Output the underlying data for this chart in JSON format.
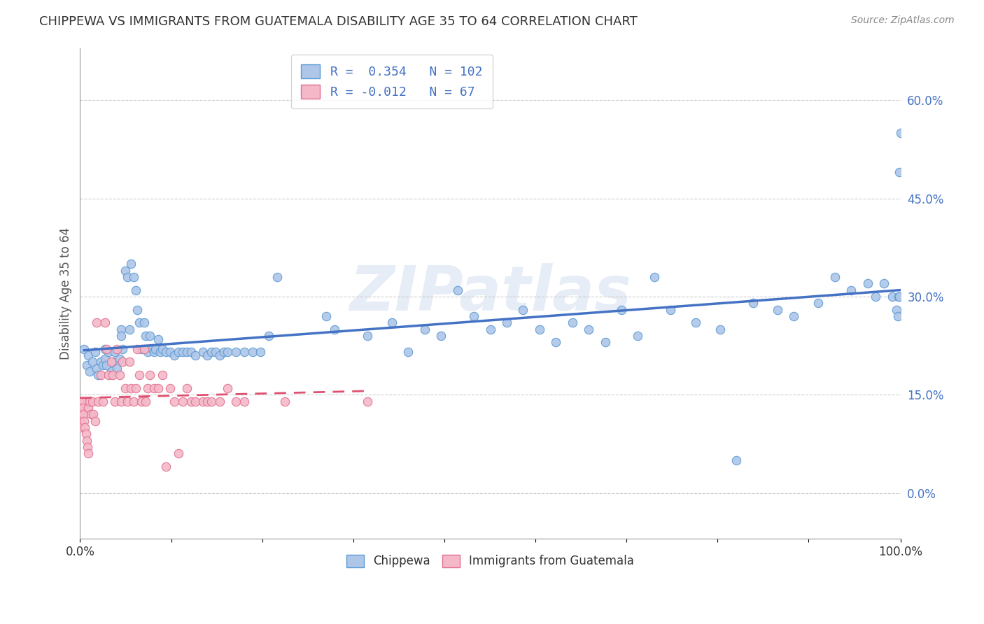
{
  "title": "CHIPPEWA VS IMMIGRANTS FROM GUATEMALA DISABILITY AGE 35 TO 64 CORRELATION CHART",
  "source": "Source: ZipAtlas.com",
  "ylabel": "Disability Age 35 to 64",
  "xlim": [
    0.0,
    1.0
  ],
  "ylim": [
    -0.07,
    0.68
  ],
  "yticks": [
    0.0,
    0.15,
    0.3,
    0.45,
    0.6
  ],
  "ytick_labels": [
    "0.0%",
    "15.0%",
    "30.0%",
    "45.0%",
    "60.0%"
  ],
  "xtick_labels": [
    "0.0%",
    "",
    "",
    "",
    "",
    "",
    "",
    "",
    "",
    "100.0%"
  ],
  "xticks": [
    0.0,
    0.111,
    0.222,
    0.333,
    0.444,
    0.555,
    0.666,
    0.777,
    0.888,
    1.0
  ],
  "chippewa_R": 0.354,
  "chippewa_N": 102,
  "guatemala_R": -0.012,
  "guatemala_N": 67,
  "chippewa_color": "#aec6e8",
  "guatemala_color": "#f4b8c8",
  "chippewa_edge_color": "#5b9bd5",
  "guatemala_edge_color": "#e07090",
  "chippewa_line_color": "#4472c4",
  "guatemala_line_color": "#e05070",
  "legend_blue_label": "Chippewa",
  "legend_pink_label": "Immigrants from Guatemala",
  "watermark": "ZIPatlas",
  "background_color": "#ffffff",
  "grid_color": "#c8c8c8",
  "chippewa_x": [
    0.005,
    0.008,
    0.01,
    0.012,
    0.015,
    0.018,
    0.02,
    0.022,
    0.025,
    0.028,
    0.03,
    0.03,
    0.032,
    0.035,
    0.038,
    0.04,
    0.042,
    0.045,
    0.048,
    0.05,
    0.05,
    0.052,
    0.055,
    0.058,
    0.06,
    0.062,
    0.065,
    0.068,
    0.07,
    0.072,
    0.075,
    0.078,
    0.08,
    0.082,
    0.085,
    0.088,
    0.09,
    0.092,
    0.095,
    0.098,
    0.1,
    0.105,
    0.11,
    0.115,
    0.12,
    0.125,
    0.13,
    0.135,
    0.14,
    0.15,
    0.155,
    0.16,
    0.165,
    0.17,
    0.175,
    0.18,
    0.19,
    0.2,
    0.21,
    0.22,
    0.23,
    0.24,
    0.3,
    0.31,
    0.35,
    0.38,
    0.4,
    0.42,
    0.44,
    0.46,
    0.48,
    0.5,
    0.52,
    0.54,
    0.56,
    0.58,
    0.6,
    0.62,
    0.64,
    0.66,
    0.68,
    0.7,
    0.72,
    0.75,
    0.78,
    0.8,
    0.82,
    0.85,
    0.87,
    0.9,
    0.92,
    0.94,
    0.96,
    0.97,
    0.98,
    0.99,
    0.995,
    0.997,
    0.998,
    0.999,
    0.999,
    1.0
  ],
  "chippewa_y": [
    0.22,
    0.195,
    0.21,
    0.185,
    0.2,
    0.215,
    0.19,
    0.18,
    0.2,
    0.195,
    0.22,
    0.205,
    0.195,
    0.215,
    0.185,
    0.2,
    0.215,
    0.19,
    0.205,
    0.25,
    0.24,
    0.22,
    0.34,
    0.33,
    0.25,
    0.35,
    0.33,
    0.31,
    0.28,
    0.26,
    0.22,
    0.26,
    0.24,
    0.215,
    0.24,
    0.22,
    0.215,
    0.22,
    0.235,
    0.215,
    0.22,
    0.215,
    0.215,
    0.21,
    0.215,
    0.215,
    0.215,
    0.215,
    0.21,
    0.215,
    0.21,
    0.215,
    0.215,
    0.21,
    0.215,
    0.215,
    0.215,
    0.215,
    0.215,
    0.215,
    0.24,
    0.33,
    0.27,
    0.25,
    0.24,
    0.26,
    0.215,
    0.25,
    0.24,
    0.31,
    0.27,
    0.25,
    0.26,
    0.28,
    0.25,
    0.23,
    0.26,
    0.25,
    0.23,
    0.28,
    0.24,
    0.33,
    0.28,
    0.26,
    0.25,
    0.05,
    0.29,
    0.28,
    0.27,
    0.29,
    0.33,
    0.31,
    0.32,
    0.3,
    0.32,
    0.3,
    0.28,
    0.27,
    0.3,
    0.3,
    0.49,
    0.55
  ],
  "guatemala_x": [
    0.0,
    0.0,
    0.0,
    0.0,
    0.0,
    0.002,
    0.003,
    0.004,
    0.005,
    0.006,
    0.007,
    0.008,
    0.009,
    0.01,
    0.01,
    0.012,
    0.013,
    0.015,
    0.016,
    0.018,
    0.02,
    0.022,
    0.025,
    0.028,
    0.03,
    0.032,
    0.035,
    0.038,
    0.04,
    0.042,
    0.045,
    0.048,
    0.05,
    0.052,
    0.055,
    0.058,
    0.06,
    0.062,
    0.065,
    0.068,
    0.07,
    0.072,
    0.075,
    0.078,
    0.08,
    0.082,
    0.085,
    0.09,
    0.095,
    0.1,
    0.105,
    0.11,
    0.115,
    0.12,
    0.125,
    0.13,
    0.135,
    0.14,
    0.15,
    0.155,
    0.16,
    0.17,
    0.18,
    0.19,
    0.2,
    0.25,
    0.35
  ],
  "guatemala_y": [
    0.14,
    0.13,
    0.12,
    0.11,
    0.1,
    0.14,
    0.13,
    0.12,
    0.11,
    0.1,
    0.09,
    0.08,
    0.07,
    0.06,
    0.13,
    0.14,
    0.12,
    0.14,
    0.12,
    0.11,
    0.26,
    0.14,
    0.18,
    0.14,
    0.26,
    0.22,
    0.18,
    0.2,
    0.18,
    0.14,
    0.22,
    0.18,
    0.14,
    0.2,
    0.16,
    0.14,
    0.2,
    0.16,
    0.14,
    0.16,
    0.22,
    0.18,
    0.14,
    0.22,
    0.14,
    0.16,
    0.18,
    0.16,
    0.16,
    0.18,
    0.04,
    0.16,
    0.14,
    0.06,
    0.14,
    0.16,
    0.14,
    0.14,
    0.14,
    0.14,
    0.14,
    0.14,
    0.16,
    0.14,
    0.14,
    0.14,
    0.14
  ]
}
